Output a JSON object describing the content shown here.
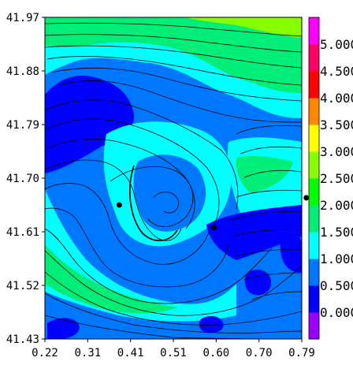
{
  "chart_data": {
    "type": "heatmap",
    "title": "",
    "xlabel": "",
    "ylabel": "",
    "xlim": [
      0.22,
      0.79
    ],
    "ylim": [
      41.43,
      41.97
    ],
    "x_ticks": [
      "0.22",
      "0.31",
      "0.41",
      "0.51",
      "0.60",
      "0.70",
      "0.79"
    ],
    "y_ticks": [
      "41.97",
      "41.88",
      "41.79",
      "41.70",
      "41.61",
      "41.52",
      "41.43"
    ],
    "overlay": "streamlines",
    "colorbar": {
      "range": [
        0.0,
        5.5
      ],
      "step": 0.5,
      "labels": [
        "0.000",
        "0.500",
        "1.000",
        "1.500",
        "2.000",
        "2.500",
        "3.000",
        "3.500",
        "4.000",
        "4.500",
        "5.000"
      ],
      "colors": [
        "#9900ff",
        "#0000ff",
        "#0077ff",
        "#00ffff",
        "#00ee77",
        "#00ff00",
        "#88ff00",
        "#ffff00",
        "#ff8800",
        "#ff0000",
        "#ff0066",
        "#ff00ff"
      ]
    },
    "points": [
      {
        "x": 0.385,
        "y": 41.655
      },
      {
        "x": 0.595,
        "y": 41.617
      },
      {
        "x": 0.8,
        "y": 41.667
      }
    ]
  }
}
